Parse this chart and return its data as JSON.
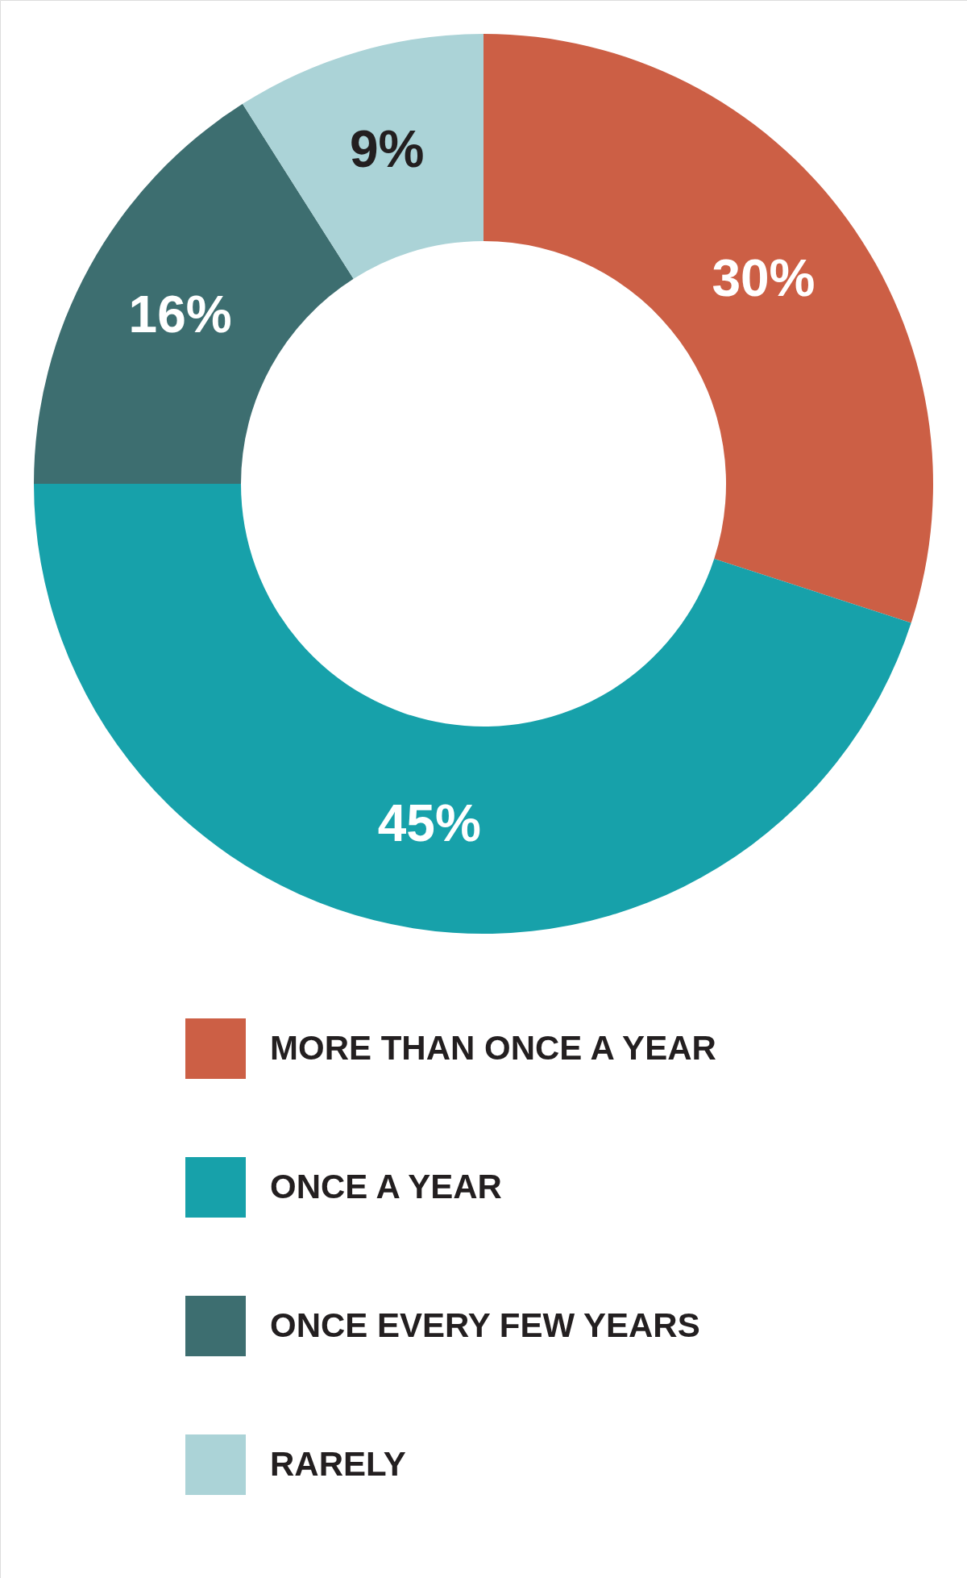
{
  "chart_data": {
    "type": "donut",
    "categories": [
      "MORE THAN ONCE A YEAR",
      "ONCE A YEAR",
      "ONCE EVERY FEW YEARS",
      "RARELY"
    ],
    "values": [
      30,
      45,
      16,
      9
    ],
    "colors": [
      "#cc5f45",
      "#17a1aa",
      "#3d6e70",
      "#abd3d7"
    ],
    "value_labels": [
      "30%",
      "45%",
      "16%",
      "9%"
    ],
    "legend": "bottom"
  }
}
